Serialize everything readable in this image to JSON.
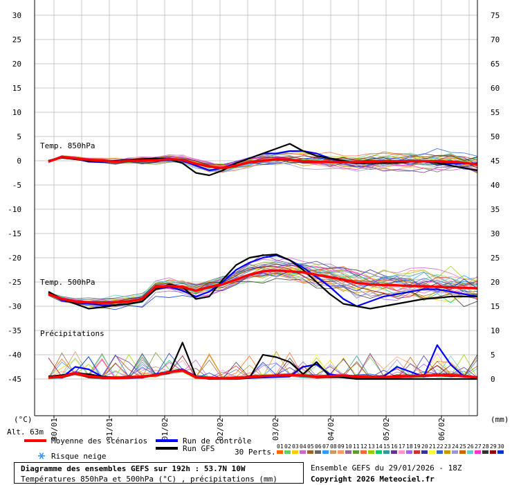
{
  "chart_data": {
    "type": "line",
    "title": "Diagramme des ensembles GEFS sur 192h : 53.7N 10W",
    "subtitle": "Températures 850hPa et 500hPa (°C) , précipitations (mm)",
    "left_axis_unit": "(°C)",
    "right_axis_unit": "(mm)",
    "altitude_label": "Alt. 63m",
    "left_ticks": [
      30,
      25,
      20,
      15,
      10,
      5,
      0,
      -5,
      -10,
      -15,
      -20,
      -25,
      -30,
      -35,
      -40,
      -45
    ],
    "right_ticks": [
      75,
      70,
      65,
      60,
      55,
      50,
      45,
      40,
      35,
      30,
      25,
      20,
      15,
      10,
      5,
      0
    ],
    "x_date_labels": [
      "30/01",
      "31/01",
      "01/02",
      "02/02",
      "03/02",
      "04/02",
      "05/02",
      "06/02"
    ],
    "x_steps": 33,
    "ylim_temp": [
      -53,
      32
    ],
    "ylim_precip": [
      0,
      77
    ],
    "precip_base_temp": -45,
    "grid": true,
    "sections": {
      "t850_label": "Temp. 850hPa",
      "t500_label": "Temp. 500hPa",
      "precip_label": "Précipitations"
    },
    "series": [
      {
        "name": "Moyenne des scénarios",
        "role": "mean",
        "color": "#ff0000",
        "t850": [
          -0.2,
          0.8,
          0.5,
          0.2,
          0.0,
          -0.2,
          0.0,
          0.0,
          0.1,
          0.3,
          0.2,
          -0.6,
          -1.2,
          -1.5,
          -1.0,
          -0.3,
          0.0,
          0.3,
          0.2,
          -0.1,
          -0.2,
          -0.3,
          -0.3,
          -0.3,
          -0.2,
          -0.1,
          -0.1,
          -0.1,
          -0.1,
          -0.1,
          -0.2,
          -0.4,
          -0.8
        ],
        "t500": [
          -27.5,
          -28.5,
          -29.0,
          -29.2,
          -29.3,
          -29.2,
          -29.0,
          -28.5,
          -26.0,
          -25.8,
          -26.0,
          -26.8,
          -26.0,
          -25.5,
          -24.5,
          -23.5,
          -22.8,
          -22.6,
          -22.8,
          -23.0,
          -23.5,
          -24.0,
          -24.5,
          -25.2,
          -25.5,
          -25.6,
          -25.7,
          -25.8,
          -25.9,
          -26.0,
          -26.1,
          -26.2,
          -26.3
        ],
        "precip": [
          0.3,
          0.5,
          1.2,
          0.6,
          0.3,
          0.2,
          0.3,
          0.5,
          0.8,
          1.4,
          1.8,
          0.4,
          0.2,
          0.1,
          0.2,
          0.4,
          0.6,
          0.7,
          0.8,
          0.7,
          0.5,
          0.6,
          0.7,
          0.5,
          0.4,
          0.4,
          0.5,
          0.6,
          0.7,
          0.8,
          0.8,
          0.6,
          0.3
        ]
      },
      {
        "name": "Run de contrôle",
        "role": "control",
        "color": "#0000ff",
        "t850": [
          0.0,
          0.8,
          0.4,
          -0.2,
          -0.3,
          0.0,
          0.2,
          0.2,
          0.4,
          0.5,
          0.0,
          -1.0,
          -2.0,
          -1.5,
          -0.5,
          0.5,
          1.5,
          1.5,
          2.0,
          2.0,
          1.5,
          0.5,
          -0.2,
          -0.5,
          -0.5,
          -0.3,
          0.0,
          0.0,
          -0.2,
          -0.4,
          -0.6,
          -0.6,
          -0.5
        ],
        "t500": [
          -27.3,
          -28.8,
          -29.2,
          -29.5,
          -29.8,
          -29.8,
          -29.5,
          -29.0,
          -26.5,
          -26.0,
          -26.8,
          -28.0,
          -27.0,
          -25.0,
          -22.5,
          -21.0,
          -20.0,
          -19.5,
          -20.5,
          -22.0,
          -24.0,
          -26.0,
          -28.5,
          -30.0,
          -29.0,
          -28.0,
          -27.5,
          -27.0,
          -26.5,
          -26.5,
          -27.0,
          -27.5,
          -28.0
        ],
        "precip": [
          0.5,
          0.3,
          2.5,
          2.0,
          0.5,
          0.3,
          0.2,
          0.3,
          1.0,
          1.5,
          2.0,
          0.5,
          0.2,
          0.1,
          0.1,
          0.2,
          0.3,
          0.4,
          0.5,
          2.5,
          3.0,
          1.0,
          0.5,
          0.3,
          0.5,
          0.5,
          2.5,
          1.5,
          0.5,
          7.0,
          3.0,
          0.5,
          0.2
        ]
      },
      {
        "name": "Run GFS",
        "role": "gfs",
        "color": "#000000",
        "t850": [
          0.0,
          0.6,
          0.3,
          0.0,
          -0.2,
          0.0,
          0.2,
          0.3,
          0.5,
          0.3,
          -0.5,
          -2.5,
          -3.0,
          -2.0,
          -0.5,
          0.5,
          1.5,
          2.5,
          3.5,
          2.0,
          1.0,
          0.5,
          0.0,
          -0.5,
          -0.5,
          -0.5,
          -0.5,
          -0.2,
          0.0,
          -0.5,
          -1.0,
          -1.5,
          -2.0
        ],
        "t500": [
          -27.0,
          -28.5,
          -29.5,
          -30.5,
          -30.2,
          -29.8,
          -29.5,
          -29.0,
          -26.5,
          -25.5,
          -26.0,
          -28.5,
          -28.0,
          -24.5,
          -21.5,
          -20.0,
          -19.5,
          -19.3,
          -20.5,
          -22.5,
          -25.0,
          -27.5,
          -29.5,
          -30.0,
          -30.5,
          -30.0,
          -29.5,
          -29.0,
          -28.5,
          -28.3,
          -28.0,
          -28.0,
          -28.0
        ],
        "precip": [
          0.5,
          0.8,
          1.2,
          1.0,
          0.5,
          0.3,
          0.3,
          0.5,
          0.8,
          1.2,
          7.5,
          0.5,
          0.0,
          0.0,
          0.0,
          0.2,
          5.0,
          4.5,
          3.5,
          1.0,
          3.5,
          0.5,
          0.3,
          0.0,
          0.0,
          0.0,
          0.0,
          0.0,
          0.0,
          0.0,
          0.0,
          0.0,
          0.0
        ]
      }
    ],
    "members": [
      {
        "id": "01",
        "color": "#ff6600"
      },
      {
        "id": "02",
        "color": "#66cc66"
      },
      {
        "id": "03",
        "color": "#ffcc00"
      },
      {
        "id": "04",
        "color": "#cc66cc"
      },
      {
        "id": "05",
        "color": "#996633"
      },
      {
        "id": "06",
        "color": "#666666"
      },
      {
        "id": "07",
        "color": "#3399ff"
      },
      {
        "id": "08",
        "color": "#cc9966"
      },
      {
        "id": "09",
        "color": "#ff9966"
      },
      {
        "id": "10",
        "color": "#996699"
      },
      {
        "id": "11",
        "color": "#669933"
      },
      {
        "id": "12",
        "color": "#ff6633"
      },
      {
        "id": "13",
        "color": "#99cc00"
      },
      {
        "id": "14",
        "color": "#00cc66"
      },
      {
        "id": "15",
        "color": "#339999"
      },
      {
        "id": "16",
        "color": "#663399"
      },
      {
        "id": "17",
        "color": "#ff99cc"
      },
      {
        "id": "18",
        "color": "#9966ff"
      },
      {
        "id": "19",
        "color": "#cc3333"
      },
      {
        "id": "20",
        "color": "#333399"
      },
      {
        "id": "21",
        "color": "#ffff33"
      },
      {
        "id": "22",
        "color": "#3366cc"
      },
      {
        "id": "23",
        "color": "#cc9900"
      },
      {
        "id": "24",
        "color": "#9999cc"
      },
      {
        "id": "25",
        "color": "#cc6600"
      },
      {
        "id": "26",
        "color": "#66cccc"
      },
      {
        "id": "27",
        "color": "#ff33cc"
      },
      {
        "id": "28",
        "color": "#333333"
      },
      {
        "id": "29",
        "color": "#990000"
      },
      {
        "id": "30",
        "color": "#0033cc"
      }
    ]
  },
  "legend": {
    "mean_label": "Moyenne des scénarios",
    "control_label": "Run de contrôle",
    "gfs_label": "Run GFS",
    "snow_label": "Risque neige",
    "perts_label": "30 Perts."
  },
  "footer": {
    "title": "Diagramme des ensembles GEFS sur 192h : 53.7N 10W",
    "subtitle": "Températures 850hPa et 500hPa (°C) , précipitations (mm)",
    "run_info": "Ensemble GEFS du 29/01/2026 - 18Z",
    "copyright": "Copyright 2026 Meteociel.fr"
  },
  "colors": {
    "grid": "#c8c8c8",
    "mean": "#ff0000",
    "control": "#0000ff",
    "gfs": "#000000",
    "snow": "#3399ff"
  }
}
